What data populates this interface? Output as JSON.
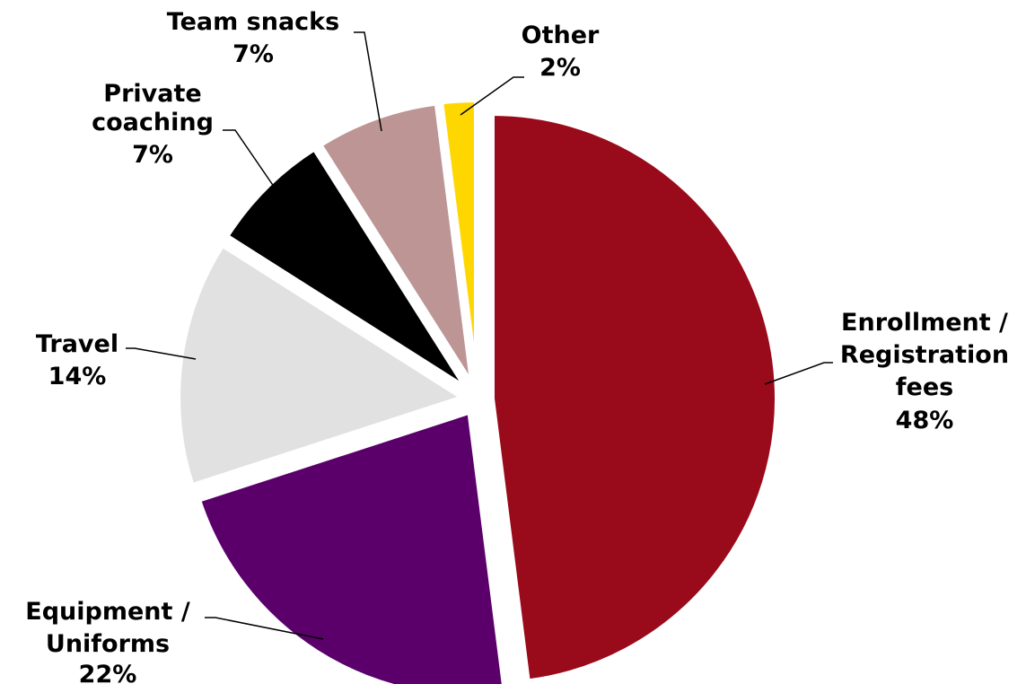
{
  "chart_data": {
    "type": "pie",
    "title": "",
    "slices": [
      {
        "name": "Enrollment / Registration fees",
        "lines": [
          "Enrollment /",
          "Registration",
          "fees"
        ],
        "pct_label": "48%",
        "value": 48,
        "color": "#990a1a"
      },
      {
        "name": "Equipment / Uniforms",
        "lines": [
          "Equipment /",
          "Uniforms"
        ],
        "pct_label": "22%",
        "value": 22,
        "color": "#5b006b"
      },
      {
        "name": "Travel",
        "lines": [
          "Travel"
        ],
        "pct_label": "14%",
        "value": 14,
        "color": "#e1e1e1"
      },
      {
        "name": "Private coaching",
        "lines": [
          "Private",
          "coaching"
        ],
        "pct_label": "7%",
        "value": 7,
        "color": "#000000"
      },
      {
        "name": "Team snacks",
        "lines": [
          "Team snacks"
        ],
        "pct_label": "7%",
        "value": 7,
        "color": "#bd9595"
      },
      {
        "name": "Other",
        "lines": [
          "Other"
        ],
        "pct_label": "2%",
        "value": 2,
        "color": "#ffd700"
      }
    ],
    "legend": "none",
    "slice_separation": "exploded"
  }
}
